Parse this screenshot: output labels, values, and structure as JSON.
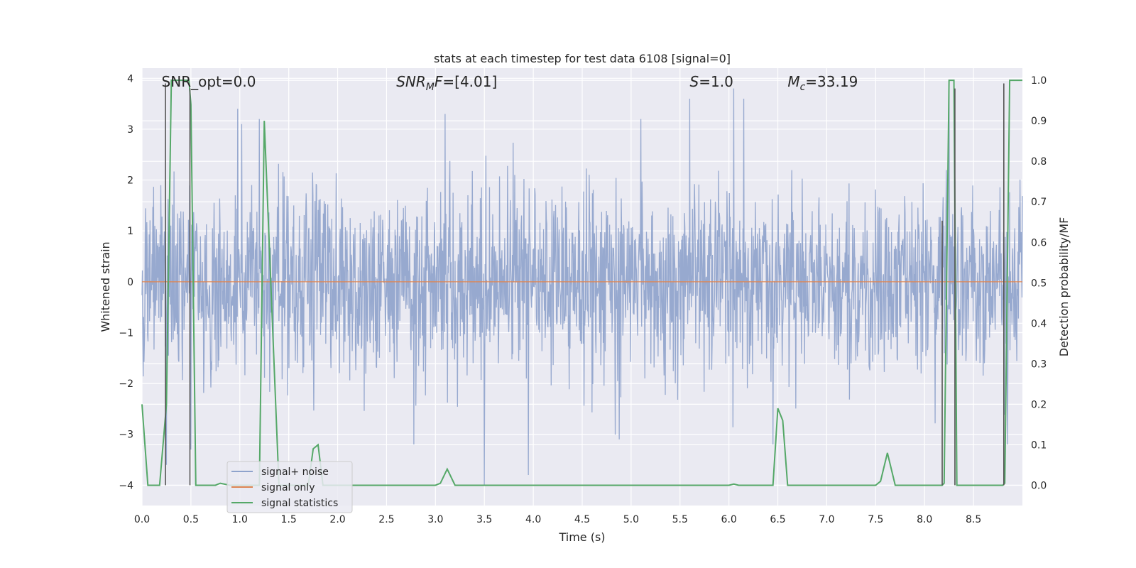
{
  "chart_data": {
    "type": "line",
    "title": "stats at each timestep for test data 6108 [signal=0]",
    "xlabel": "Time (s)",
    "ylabel_left": "Whitened strain",
    "ylabel_right": "Detection probability/MF",
    "xlim": [
      0.0,
      9.0
    ],
    "ylim_left": [
      -4.4,
      4.2
    ],
    "ylim_right": [
      -0.05,
      1.03
    ],
    "x_ticks": [
      "0.0",
      "0.5",
      "1.0",
      "1.5",
      "2.0",
      "2.5",
      "3.0",
      "3.5",
      "4.0",
      "4.5",
      "5.0",
      "5.5",
      "6.0",
      "6.5",
      "7.0",
      "7.5",
      "8.0",
      "8.5"
    ],
    "x_tick_values": [
      0.0,
      0.5,
      1.0,
      1.5,
      2.0,
      2.5,
      3.0,
      3.5,
      4.0,
      4.5,
      5.0,
      5.5,
      6.0,
      6.5,
      7.0,
      7.5,
      8.0,
      8.5
    ],
    "y_left_ticks": [
      "−4",
      "−3",
      "−2",
      "−1",
      "0",
      "1",
      "2",
      "3",
      "4"
    ],
    "y_left_tick_values": [
      -4,
      -3,
      -2,
      -1,
      0,
      1,
      2,
      3,
      4
    ],
    "y_right_ticks": [
      "0.0",
      "0.1",
      "0.2",
      "0.3",
      "0.4",
      "0.5",
      "0.6",
      "0.7",
      "0.8",
      "0.9",
      "1.0"
    ],
    "y_right_tick_values": [
      0.0,
      0.1,
      0.2,
      0.3,
      0.4,
      0.5,
      0.6,
      0.7,
      0.8,
      0.9,
      1.0
    ],
    "grid": true,
    "legend_position": "lower-left",
    "annotations": [
      {
        "text": "SNR_opt=0.0",
        "x": 0.2
      },
      {
        "text": "SNR_MF=[4.01]",
        "x": 2.6,
        "math": "SNR_MF"
      },
      {
        "text": "S=1.0",
        "x": 5.6,
        "math": "S"
      },
      {
        "text": "M_c=33.19",
        "x": 6.6,
        "math": "Mc"
      }
    ],
    "series": [
      {
        "name": "signal+ noise",
        "axis": "left",
        "color": "#8fa3cc",
        "kind": "noise",
        "noise_std": 0.9,
        "noise_samples": 2200,
        "spikes": [
          [
            0.25,
            -3.6
          ],
          [
            0.5,
            -3.3
          ],
          [
            0.98,
            3.4
          ],
          [
            1.02,
            3.1
          ],
          [
            1.2,
            3.2
          ],
          [
            2.78,
            -3.2
          ],
          [
            3.1,
            3.3
          ],
          [
            3.5,
            -4.0
          ],
          [
            3.95,
            -3.8
          ],
          [
            4.88,
            -3.1
          ],
          [
            5.1,
            3.2
          ],
          [
            5.6,
            3.6
          ],
          [
            6.05,
            3.8
          ],
          [
            6.15,
            3.6
          ],
          [
            6.45,
            -3.2
          ],
          [
            8.25,
            3.8
          ],
          [
            8.85,
            -3.2
          ]
        ]
      },
      {
        "name": "signal only",
        "axis": "left",
        "color": "#dd8452",
        "x": [
          0.0,
          9.0
        ],
        "y": [
          0.0,
          0.0
        ]
      },
      {
        "name": "signal statistics",
        "axis": "right",
        "color": "#55a868",
        "x": [
          0.0,
          0.06,
          0.18,
          0.25,
          0.3,
          0.48,
          0.5,
          0.55,
          0.75,
          0.8,
          0.9,
          1.2,
          1.25,
          1.4,
          1.45,
          1.7,
          1.75,
          1.8,
          1.85,
          2.0,
          3.0,
          3.05,
          3.12,
          3.2,
          3.5,
          6.0,
          6.05,
          6.1,
          6.45,
          6.5,
          6.55,
          6.6,
          7.5,
          7.55,
          7.62,
          7.7,
          8.18,
          8.2,
          8.25,
          8.3,
          8.33,
          8.35,
          8.8,
          8.82,
          8.87,
          8.9,
          9.0
        ],
        "y": [
          0.2,
          0.0,
          0.0,
          0.2,
          1.0,
          1.0,
          0.94,
          0.0,
          0.0,
          0.005,
          0.0,
          0.0,
          0.9,
          0.0,
          0.0,
          0.0,
          0.09,
          0.1,
          0.0,
          0.0,
          0.0,
          0.005,
          0.04,
          0.0,
          0.0,
          0.0,
          0.003,
          0.0,
          0.0,
          0.19,
          0.16,
          0.0,
          0.0,
          0.01,
          0.08,
          0.0,
          0.0,
          0.005,
          1.0,
          1.0,
          0.0,
          0.0,
          0.0,
          0.005,
          1.0,
          1.0,
          1.0
        ]
      }
    ],
    "vertical_markers": {
      "color": "#555555",
      "axis": "left",
      "lines": [
        [
          0.24,
          3.9
        ],
        [
          0.49,
          3.8
        ],
        [
          8.18,
          1.2
        ],
        [
          8.31,
          3.8
        ],
        [
          8.81,
          3.9
        ]
      ]
    }
  }
}
